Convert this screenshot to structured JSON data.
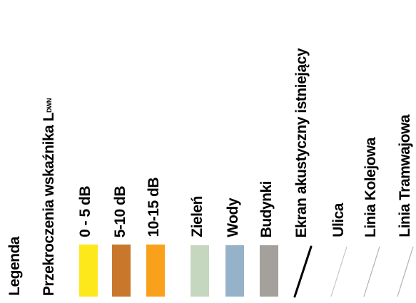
{
  "legend": {
    "title": "Legenda",
    "subtitle": "Przekroczenia wskaźnika L",
    "subtitle_subscript": "DWN",
    "items": [
      {
        "label": "0 - 5 dB",
        "type": "fill",
        "color": "#fde81b"
      },
      {
        "label": "5-10 dB",
        "type": "fill",
        "color": "#c8772c"
      },
      {
        "label": "10-15 dB",
        "type": "fill",
        "color": "#f9a11b"
      },
      {
        "label": "Zieleń",
        "type": "fill",
        "color": "#c6d7c0"
      },
      {
        "label": "Wody",
        "type": "fill",
        "color": "#95b2c9"
      },
      {
        "label": "Budynki",
        "type": "fill",
        "color": "#a4a19d"
      },
      {
        "label": "Ekran akustyczny istniejący",
        "type": "line",
        "color": "#000000"
      },
      {
        "label": "Ulica",
        "type": "line",
        "color": "#c8c6c2"
      },
      {
        "label": "Linia Kolejowa",
        "type": "line",
        "color": "#b5b1ac"
      },
      {
        "label": "Linia Tramwajowa",
        "type": "line",
        "color": "#b5b1ac"
      }
    ]
  }
}
